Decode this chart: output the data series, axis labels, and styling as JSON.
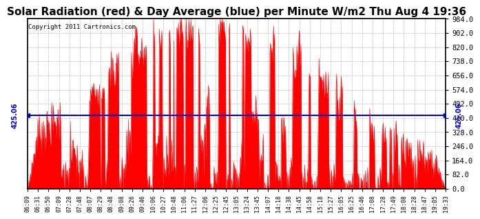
{
  "title": "Solar Radiation (red) & Day Average (blue) per Minute W/m2 Thu Aug 4 19:36",
  "copyright": "Copyright 2011 Cartronics.com",
  "avg_line": 425.06,
  "avg_label": "425.06",
  "y_min": 0.0,
  "y_max": 984.0,
  "y_ticks": [
    0.0,
    82.0,
    164.0,
    246.0,
    328.0,
    410.0,
    492.0,
    574.0,
    656.0,
    738.0,
    820.0,
    902.0,
    984.0
  ],
  "fill_color": "#FF0000",
  "line_color": "#0000CD",
  "background_color": "#FFFFFF",
  "grid_color": "#AAAAAA",
  "title_fontsize": 11,
  "x_tick_labels": [
    "06:09",
    "06:31",
    "06:50",
    "07:09",
    "07:28",
    "07:48",
    "08:07",
    "08:29",
    "08:48",
    "09:08",
    "09:26",
    "09:46",
    "10:06",
    "10:27",
    "10:48",
    "11:06",
    "11:27",
    "12:06",
    "12:25",
    "12:45",
    "13:05",
    "13:24",
    "13:45",
    "14:07",
    "14:18",
    "14:38",
    "14:45",
    "14:58",
    "15:18",
    "15:27",
    "16:05",
    "16:25",
    "16:46",
    "17:08",
    "17:28",
    "17:49",
    "18:08",
    "18:28",
    "18:47",
    "19:05",
    "19:33"
  ]
}
